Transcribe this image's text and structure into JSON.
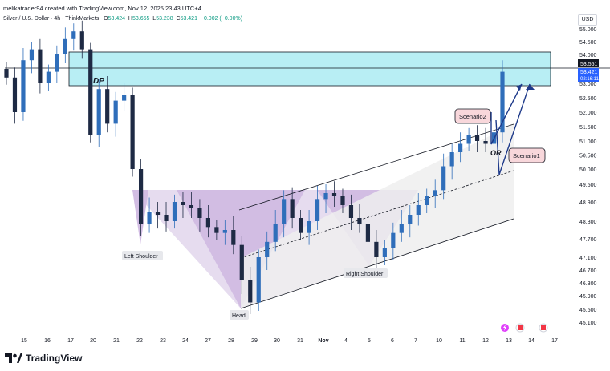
{
  "header": {
    "published": "melikatrader94 created with TradingView.com, Nov 12, 2025 23:43 UTC+4",
    "symbol": "Silver / U.S. Dollar · 4h · ThinkMarkets",
    "o_label": "O",
    "o": "53.424",
    "h_label": "H",
    "h": "53.655",
    "l_label": "L",
    "l": "53.238",
    "c_label": "C",
    "c": "53.421",
    "change": "−0.002 (−0.00%)"
  },
  "currency": "USD",
  "brand": "TradingView",
  "colors": {
    "up": "#089981",
    "down": "#f23645",
    "candle_up": "#2f6eba",
    "candle_down": "#1e2a44",
    "zone": "#b2ebf2",
    "pattern": "#d1b8e3",
    "accent": "#2962ff"
  },
  "chart_data": {
    "type": "candlestick",
    "title": "Silver / U.S. Dollar 4h",
    "ylim": [
      45.0,
      55.4
    ],
    "x_tick_labels": [
      "15",
      "16",
      "17",
      "20",
      "21",
      "22",
      "23",
      "24",
      "27",
      "28",
      "29",
      "30",
      "31",
      "Nov",
      "4",
      "5",
      "6",
      "7",
      "10",
      "11",
      "12",
      "13",
      "14",
      "17"
    ],
    "y_tick_labels": [
      "55.000",
      "54.500",
      "54.000",
      "53.000",
      "52.500",
      "52.000",
      "51.500",
      "51.000",
      "50.500",
      "50.000",
      "49.500",
      "48.900",
      "48.300",
      "47.700",
      "47.100",
      "46.700",
      "46.300",
      "45.900",
      "45.500",
      "45.100"
    ],
    "price_labels": {
      "line": "53.551",
      "last": "53.421",
      "countdown": "02:16:11"
    },
    "annotations": [
      "DP",
      "Left Shoulder",
      "Head",
      "Right Shoulder",
      "Scenario2",
      "Scenario1",
      "OR"
    ],
    "close_path": [
      53.2,
      52.0,
      53.8,
      54.2,
      53.0,
      53.4,
      54.0,
      54.6,
      54.9,
      54.2,
      51.2,
      52.8,
      51.6,
      52.4,
      52.6,
      50.0,
      48.2,
      48.6,
      48.5,
      48.3,
      48.9,
      48.8,
      48.7,
      48.4,
      48.1,
      47.9,
      48.0,
      47.5,
      46.4,
      45.7,
      47.1,
      47.6,
      48.2,
      49.0,
      48.4,
      47.9,
      48.3,
      49.0,
      49.2,
      49.1,
      48.8,
      48.4,
      48.2,
      47.6,
      47.1,
      47.4,
      47.9,
      48.2,
      48.5,
      48.8,
      49.1,
      49.3,
      50.1,
      50.6,
      50.9,
      51.2,
      51.0,
      50.9,
      51.3,
      53.4
    ]
  }
}
